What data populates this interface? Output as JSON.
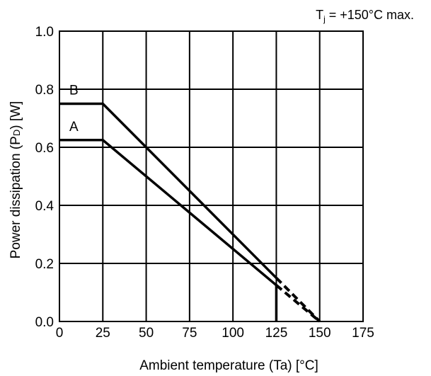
{
  "chart_data": {
    "type": "line",
    "title": "",
    "condition_note": "Tj = +150°C max.",
    "note_base": "T",
    "note_sub": "j",
    "note_rest": " = +150°C max.",
    "xlabel": "Ambient temperature (Ta) [°C]",
    "ylabel": "Power dissipation (PD) [W]",
    "ylabel_pre": "Power dissipation (P",
    "ylabel_sub": "D",
    "ylabel_post": ") [W]",
    "xlim": [
      0,
      175
    ],
    "ylim": [
      0,
      1.0
    ],
    "x_ticks": [
      0,
      25,
      50,
      75,
      100,
      125,
      150,
      175
    ],
    "x_tick_labels": [
      "0",
      "25",
      "50",
      "75",
      "100",
      "125",
      "150",
      "175"
    ],
    "y_ticks": [
      0,
      0.2,
      0.4,
      0.6,
      0.8,
      1.0
    ],
    "y_tick_labels": [
      "0.0",
      "0.2",
      "0.4",
      "0.6",
      "0.8",
      "1.0"
    ],
    "grid": true,
    "series": [
      {
        "name": "A",
        "x": [
          0,
          25,
          125,
          125
        ],
        "y": [
          0.625,
          0.625,
          0.125,
          0
        ],
        "extrapolated": {
          "x": [
            125,
            150
          ],
          "y": [
            0.125,
            0
          ]
        }
      },
      {
        "name": "B",
        "x": [
          0,
          25,
          125
        ],
        "y": [
          0.75,
          0.75,
          0.15
        ],
        "extrapolated": {
          "x": [
            125,
            150
          ],
          "y": [
            0.15,
            0
          ]
        }
      }
    ]
  }
}
